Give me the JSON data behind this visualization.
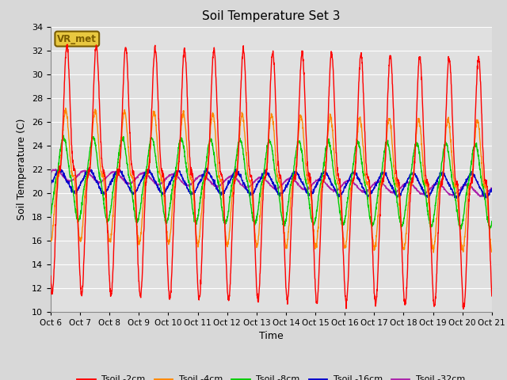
{
  "title": "Soil Temperature Set 3",
  "xlabel": "Time",
  "ylabel": "Soil Temperature (C)",
  "ylim": [
    10,
    34
  ],
  "yticks": [
    10,
    12,
    14,
    16,
    18,
    20,
    22,
    24,
    26,
    28,
    30,
    32,
    34
  ],
  "background_color": "#e0e0e0",
  "grid_color": "#ffffff",
  "fig_bg": "#d8d8d8",
  "annotation_text": "VR_met",
  "annotation_bg": "#e8c840",
  "annotation_border": "#7a5c00",
  "colors": {
    "Tsoil -2cm": "#ff0000",
    "Tsoil -4cm": "#ff8800",
    "Tsoil -8cm": "#00cc00",
    "Tsoil -16cm": "#0000cc",
    "Tsoil -32cm": "#aa22aa"
  },
  "x_tick_labels": [
    "Oct 6",
    "Oct 7",
    "Oct 8",
    "Oct 9",
    "Oct 10",
    "Oct 11",
    "Oct 12",
    "Oct 13",
    "Oct 14",
    "Oct 15",
    "Oct 16",
    "Oct 17",
    "Oct 18",
    "Oct 19",
    "Oct 20",
    "Oct 21"
  ],
  "n_days": 15,
  "pts_per_day": 144,
  "seed": 0
}
